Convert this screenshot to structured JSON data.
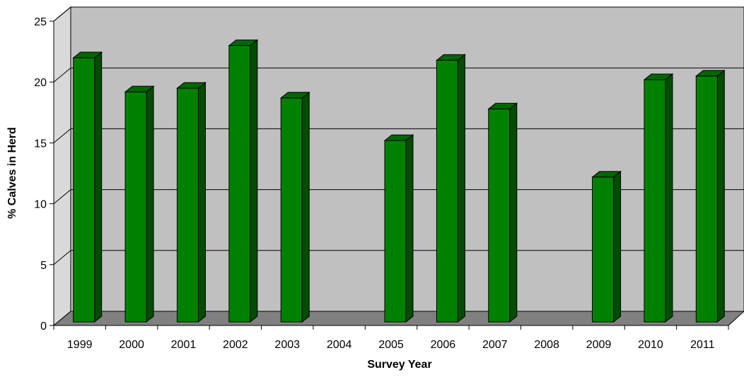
{
  "chart_data": {
    "type": "bar",
    "style": "3d-column",
    "title": "",
    "xlabel": "Survey Year",
    "ylabel": "% Calves in Herd",
    "categories": [
      "1999",
      "2000",
      "2001",
      "2002",
      "2003",
      "2004",
      "2005",
      "2006",
      "2007",
      "2008",
      "2009",
      "2010",
      "2011"
    ],
    "values": [
      21.7,
      18.9,
      19.2,
      22.7,
      18.4,
      null,
      14.9,
      21.5,
      17.5,
      null,
      11.9,
      19.9,
      20.2
    ],
    "ylim": [
      0,
      25
    ],
    "yticks": [
      0,
      5,
      10,
      15,
      20,
      25
    ],
    "grid": true,
    "legend": "none",
    "colors": {
      "bar_front": "#008000",
      "bar_side": "#004d00",
      "bar_top": "#006600",
      "plot_back": "#c0c0c0",
      "plot_side": "#d9d9d9",
      "floor": "#808080"
    }
  }
}
